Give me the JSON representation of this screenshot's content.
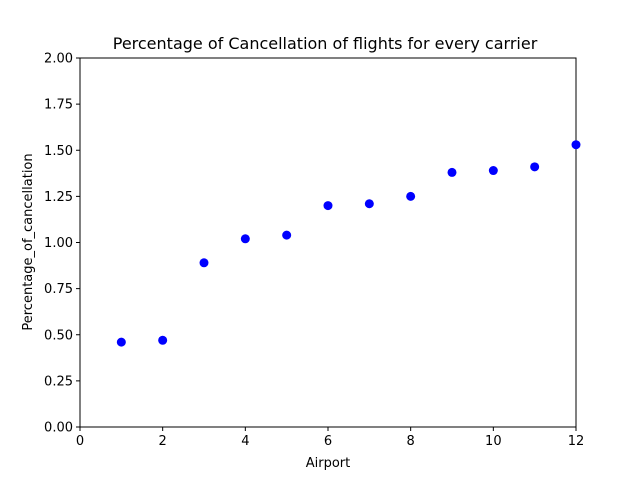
{
  "chart_data": {
    "type": "scatter",
    "title": "Percentage of Cancellation of flights for every carrier",
    "xlabel": "Airport",
    "ylabel": "Percentage_of_cancellation",
    "xlim": [
      0,
      12
    ],
    "ylim": [
      0,
      2.0
    ],
    "x_ticks": [
      "0",
      "2",
      "4",
      "6",
      "8",
      "10",
      "12"
    ],
    "y_ticks": [
      "0.00",
      "0.25",
      "0.50",
      "0.75",
      "1.00",
      "1.25",
      "1.50",
      "1.75",
      "2.00"
    ],
    "grid": false,
    "marker_color": "#0000ff",
    "series": [
      {
        "x": [
          1,
          2,
          3,
          4,
          5,
          6,
          7,
          8,
          9,
          10,
          11,
          12
        ],
        "y": [
          0.46,
          0.47,
          0.89,
          1.02,
          1.04,
          1.2,
          1.21,
          1.25,
          1.38,
          1.39,
          1.41,
          1.53
        ]
      }
    ]
  }
}
